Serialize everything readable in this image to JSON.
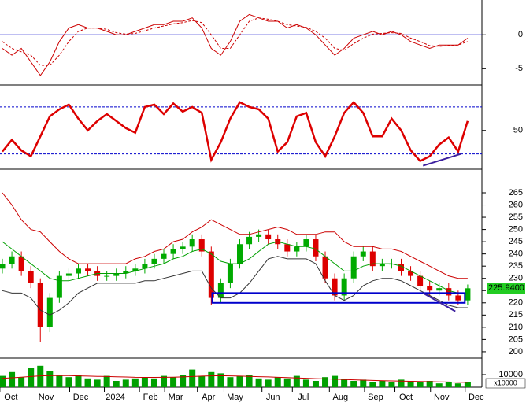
{
  "chart_data": [
    {
      "type": "line",
      "xlim": [
        -0.25,
        50.5
      ],
      "ylim": [
        -7.4,
        4.9
      ],
      "yticks": [
        -5,
        0
      ],
      "hlines": [
        0
      ],
      "hline_color": "#0000cc",
      "hline_style": "solid",
      "series": [
        {
          "color": "#cc0000",
          "style": "solid",
          "width": 1,
          "values": [
            -2,
            -3,
            -2,
            -4,
            -6,
            -4,
            -1,
            1,
            1.5,
            1,
            1,
            0.5,
            0,
            0,
            0.5,
            1,
            1.5,
            1.5,
            2,
            2,
            2.5,
            1,
            -2,
            -3,
            -1,
            2,
            3,
            2.5,
            2,
            2,
            1,
            1.5,
            1,
            0,
            -1.5,
            -3,
            -2,
            -0.5,
            0,
            0.5,
            0,
            0.5,
            0,
            -1,
            -1.5,
            -2,
            -1.5,
            -1.5,
            -1.5,
            -0.5
          ]
        },
        {
          "color": "#cc0000",
          "style": "dashed",
          "width": 1,
          "values": [
            -1,
            -2,
            -2.5,
            -3,
            -4.5,
            -4.5,
            -3,
            -1,
            0.5,
            1,
            1,
            0.8,
            0.3,
            0.1,
            0.2,
            0.6,
            1,
            1.3,
            1.6,
            1.8,
            2.1,
            1.8,
            0,
            -2,
            -2,
            0,
            2,
            2.5,
            2.3,
            2,
            1.5,
            1.3,
            1.1,
            0.5,
            -0.5,
            -2,
            -2.3,
            -1.3,
            -0.5,
            0.1,
            0.2,
            0.3,
            0.2,
            -0.5,
            -1,
            -1.6,
            -1.7,
            -1.6,
            -1.5,
            -1
          ]
        }
      ]
    },
    {
      "type": "line",
      "xlim": [
        -0.25,
        50.5
      ],
      "ylim": [
        17,
        84
      ],
      "yticks": [
        50
      ],
      "hlines": [
        30,
        70
      ],
      "hline_color": "#0000cc",
      "hline_style": "dashed",
      "series": [
        {
          "color": "#dd0000",
          "style": "solid",
          "width": 2.5,
          "values": [
            32,
            42,
            33,
            28,
            45,
            62,
            68,
            72,
            60,
            50,
            58,
            64,
            58,
            52,
            48,
            70,
            72,
            64,
            73,
            66,
            70,
            65,
            25,
            40,
            60,
            74,
            70,
            68,
            60,
            32,
            40,
            62,
            65,
            40,
            28,
            45,
            65,
            74,
            65,
            45,
            45,
            60,
            50,
            33,
            24,
            28,
            38,
            44,
            32,
            58
          ]
        }
      ],
      "shapes": [
        {
          "type": "line",
          "x": [
            44.3,
            48.3
          ],
          "y": [
            20,
            30
          ],
          "color": "#3b1f9e"
        }
      ]
    },
    {
      "type": "candlestick",
      "xlim": [
        -0.25,
        50.5
      ],
      "ylim": [
        197.4,
        272.4
      ],
      "yticks": [
        200,
        205,
        210,
        215,
        220,
        225,
        230,
        235,
        240,
        245,
        250,
        255,
        260,
        265
      ],
      "up_color": "#00aa00",
      "down_color": "#dd0000",
      "open": [
        234,
        236,
        239,
        233,
        228,
        210,
        222,
        231,
        232,
        234,
        233,
        231,
        231,
        232,
        233,
        234,
        236,
        238,
        240,
        242,
        243,
        246,
        241,
        222,
        228,
        236,
        244,
        247,
        248,
        246,
        244,
        241,
        243,
        246,
        239,
        230,
        223,
        230,
        239,
        241,
        235,
        236,
        236,
        233,
        231,
        227,
        225,
        226,
        223,
        221
      ],
      "high": [
        238,
        241,
        241,
        235,
        230,
        224,
        233,
        234,
        236,
        236,
        235,
        233,
        234,
        235,
        236,
        238,
        240,
        242,
        244,
        245,
        248,
        248,
        243,
        230,
        238,
        246,
        249,
        250,
        250,
        248,
        246,
        245,
        248,
        248,
        241,
        232,
        232,
        241,
        243,
        243,
        238,
        238,
        238,
        235,
        233,
        229,
        228,
        228,
        225,
        227.5
      ],
      "low": [
        232,
        234,
        231,
        226,
        204,
        208,
        220,
        229,
        230,
        231,
        229,
        229,
        229,
        230,
        231,
        232,
        234,
        236,
        238,
        240,
        241,
        239,
        219,
        220,
        226,
        234,
        242,
        245,
        244,
        242,
        239,
        239,
        241,
        237,
        228,
        221,
        221,
        228,
        237,
        233,
        233,
        234,
        231,
        229,
        225,
        223,
        223,
        221,
        219,
        219
      ],
      "close": [
        236,
        239,
        233,
        228,
        210,
        222,
        231,
        232,
        234,
        233,
        231,
        231,
        232,
        233,
        234,
        236,
        238,
        240,
        242,
        243,
        246,
        241,
        222,
        228,
        236,
        244,
        247,
        248,
        246,
        244,
        241,
        243,
        246,
        239,
        230,
        223,
        230,
        239,
        241,
        235,
        236,
        236,
        233,
        231,
        227,
        225,
        226,
        223,
        221,
        225.94
      ],
      "series": [
        {
          "color": "#cc0000",
          "values": [
            265,
            260,
            254,
            250,
            249,
            245,
            241,
            238,
            236,
            236,
            236,
            236,
            236,
            236,
            238,
            239,
            241,
            242,
            245,
            246,
            249,
            251,
            254,
            252,
            250,
            248,
            248,
            249,
            250,
            251,
            250,
            248,
            248,
            248,
            249,
            249,
            245,
            243,
            243,
            243,
            242,
            242,
            241,
            239,
            237,
            235,
            233,
            231,
            230,
            230
          ]
        },
        {
          "color": "#00a000",
          "values": [
            245,
            242,
            239,
            236,
            233,
            230,
            229,
            229,
            230,
            231,
            232,
            232,
            232,
            232,
            233,
            234,
            235,
            236,
            238,
            239,
            241,
            242,
            240,
            237,
            236,
            236,
            238,
            241,
            244,
            245,
            244,
            243,
            243,
            242,
            239,
            236,
            233,
            233,
            235,
            236,
            236,
            236,
            235,
            233,
            231,
            229,
            227,
            225,
            224,
            224
          ]
        },
        {
          "color": "#333333",
          "values": [
            225,
            224,
            224,
            222,
            217,
            215,
            217,
            220,
            224,
            226,
            228,
            228,
            228,
            228,
            228,
            229,
            229,
            230,
            231,
            232,
            233,
            233,
            226,
            222,
            222,
            224,
            228,
            233,
            238,
            239,
            238,
            238,
            238,
            236,
            229,
            223,
            221,
            223,
            227,
            229,
            230,
            230,
            229,
            227,
            225,
            223,
            221,
            219,
            218,
            218
          ]
        }
      ],
      "shapes": [
        {
          "type": "rect",
          "x": [
            22.1,
            48.7
          ],
          "y": [
            220,
            224
          ],
          "color": "#0000cc"
        },
        {
          "type": "line",
          "x": [
            44.3,
            47.7
          ],
          "y": [
            224,
            216.5
          ],
          "color": "#3b1f9e"
        }
      ],
      "last_price": {
        "value": 225.94,
        "label": "225.9400"
      },
      "last_price_color": "#22cc22"
    },
    {
      "type": "bar",
      "xlim": [
        -0.25,
        50.5
      ],
      "ylim": [
        0,
        20000
      ],
      "yticks": [
        10000
      ],
      "y_label": "x10000",
      "color": "#00a000",
      "values": [
        9000,
        12000,
        8000,
        15000,
        17000,
        13000,
        9000,
        8000,
        10000,
        7000,
        6000,
        9000,
        5000,
        6000,
        7000,
        8000,
        7000,
        9000,
        8000,
        10000,
        14000,
        9000,
        12000,
        11000,
        8000,
        9000,
        10000,
        7000,
        6000,
        8000,
        7000,
        9000,
        6000,
        5000,
        8000,
        9000,
        6000,
        5000,
        6000,
        4000,
        5000,
        4000,
        6000,
        5000,
        4000,
        5000,
        3000,
        4000,
        3000,
        4000
      ],
      "series": [
        {
          "color": "#cc0000",
          "values": [
            7000,
            7500,
            8000,
            8500,
            9000,
            9200,
            9300,
            9200,
            9000,
            8800,
            8600,
            8500,
            8300,
            8100,
            7900,
            7800,
            7800,
            7900,
            8000,
            8200,
            8500,
            8800,
            9000,
            9100,
            9000,
            8800,
            8600,
            8400,
            8200,
            7900,
            7600,
            7400,
            7100,
            6800,
            6600,
            6400,
            6100,
            5900,
            5600,
            5400,
            5200,
            5000,
            4800,
            4700,
            4500,
            4400,
            4200,
            4100,
            3900,
            3800
          ]
        }
      ],
      "xticks": [
        {
          "value": 0.9,
          "label": "Oct"
        },
        {
          "value": 4.6,
          "label": "Nov"
        },
        {
          "value": 8.25,
          "label": "Dec"
        },
        {
          "value": 11.9,
          "label": "2024"
        },
        {
          "value": 15.6,
          "label": "Feb"
        },
        {
          "value": 18.25,
          "label": "Mar"
        },
        {
          "value": 21.7,
          "label": "Apr"
        },
        {
          "value": 24.5,
          "label": "May"
        },
        {
          "value": 28.5,
          "label": "Jun"
        },
        {
          "value": 31.7,
          "label": "Jul"
        },
        {
          "value": 35.6,
          "label": "Aug"
        },
        {
          "value": 39.3,
          "label": "Sep"
        },
        {
          "value": 42.5,
          "label": "Oct"
        },
        {
          "value": 46.25,
          "label": "Nov"
        },
        {
          "value": 49.9,
          "label": "Dec"
        }
      ]
    }
  ]
}
